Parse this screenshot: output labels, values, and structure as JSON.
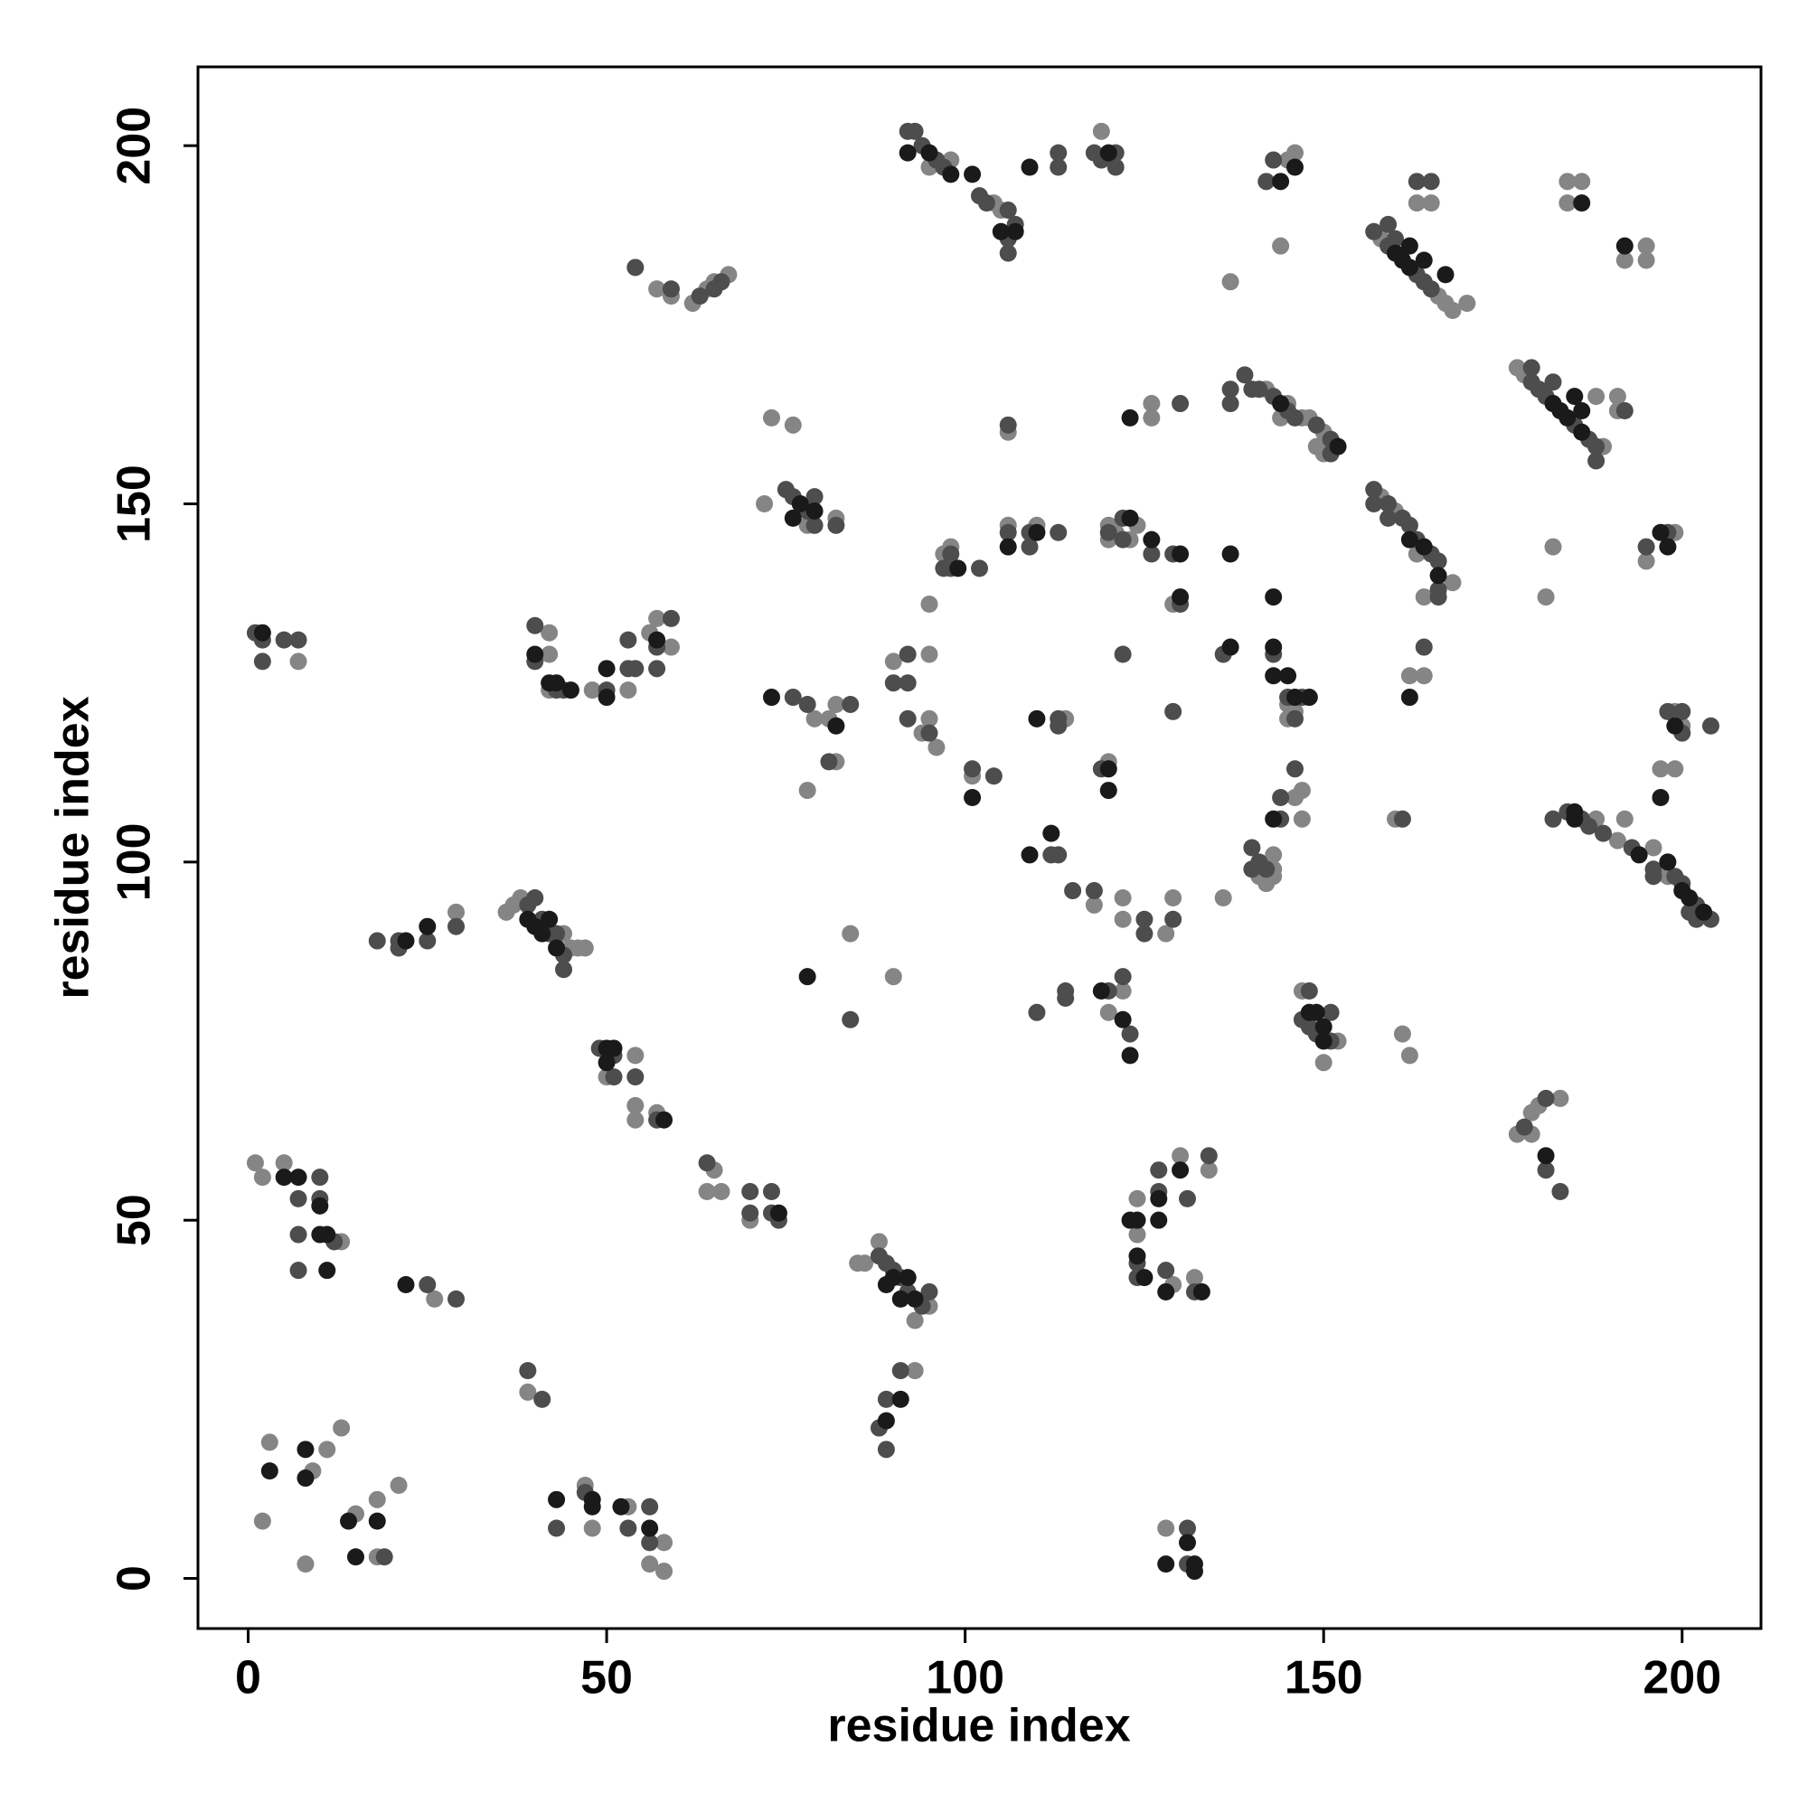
{
  "chart_data": {
    "type": "scatter",
    "x_label": "residue index",
    "y_label": "residue index",
    "xlim": [
      -7,
      211
    ],
    "ylim": [
      -7,
      211
    ],
    "xticks": [
      0,
      50,
      100,
      150,
      200
    ],
    "yticks": [
      0,
      50,
      100,
      150,
      200
    ],
    "grid": false,
    "series": [
      {
        "color": "#858585",
        "x": [
          3,
          2,
          9,
          11,
          13,
          8,
          15,
          18,
          18,
          21,
          39,
          47,
          48,
          53,
          58,
          56,
          58,
          128,
          93,
          1,
          2,
          5,
          13,
          26,
          65,
          64,
          66,
          70,
          85,
          86,
          88,
          95,
          93,
          124,
          124,
          129,
          130,
          132,
          134,
          54,
          54,
          54,
          57,
          50,
          177,
          179,
          180,
          183,
          179,
          161,
          162,
          147,
          152,
          150,
          122,
          120,
          90,
          84,
          29,
          36,
          37,
          38,
          44,
          45,
          46,
          47,
          118,
          122,
          122,
          128,
          129,
          136,
          141,
          143,
          143,
          142,
          143,
          147,
          146,
          147,
          188,
          191,
          192,
          196,
          198,
          197,
          199,
          199,
          200,
          160,
          78,
          82,
          81,
          82,
          79,
          90,
          94,
          95,
          96,
          95,
          95,
          101,
          114,
          120,
          145,
          145,
          146,
          162,
          164,
          97,
          98,
          106,
          110,
          120,
          121,
          123,
          124,
          120,
          129,
          72,
          78,
          82,
          73,
          76,
          106,
          126,
          126,
          142,
          144,
          147,
          148,
          150,
          149,
          150,
          145,
          158,
          160,
          164,
          168,
          163,
          182,
          181,
          195,
          199,
          188,
          191,
          191,
          177,
          178,
          189,
          158,
          166,
          167,
          168,
          170,
          163,
          165,
          184,
          186,
          184,
          195,
          192,
          195,
          145,
          146,
          144,
          137,
          119,
          98,
          104,
          105,
          95,
          57,
          59,
          62,
          64,
          65,
          67,
          7,
          42,
          42,
          42,
          48,
          53,
          56,
          57,
          59
        ],
        "values": [
          19,
          8,
          15,
          18,
          21,
          2,
          9,
          3,
          11,
          13,
          26,
          13,
          7,
          10,
          5,
          2,
          1,
          7,
          29,
          58,
          56,
          58,
          47,
          39,
          57,
          54,
          54,
          50,
          44,
          44,
          47,
          38,
          36,
          53,
          48,
          41,
          59,
          42,
          57,
          73,
          66,
          64,
          65,
          70,
          62,
          65,
          66,
          67,
          62,
          76,
          73,
          82,
          75,
          72,
          82,
          79,
          84,
          90,
          93,
          93,
          94,
          95,
          90,
          88,
          88,
          88,
          94,
          95,
          92,
          90,
          95,
          95,
          98,
          98,
          99,
          97,
          101,
          106,
          109,
          110,
          106,
          103,
          106,
          102,
          98,
          113,
          113,
          121,
          119,
          106,
          110,
          114,
          120,
          122,
          120,
          128,
          118,
          120,
          116,
          129,
          136,
          112,
          120,
          114,
          122,
          120,
          121,
          126,
          126,
          143,
          144,
          147,
          147,
          147,
          146,
          145,
          147,
          145,
          136,
          150,
          147,
          148,
          162,
          161,
          160,
          164,
          162,
          166,
          162,
          162,
          162,
          160,
          158,
          157,
          164,
          151,
          149,
          137,
          139,
          143,
          144,
          137,
          142,
          146,
          165,
          165,
          163,
          169,
          168,
          158,
          187,
          179,
          178,
          177,
          178,
          192,
          192,
          195,
          195,
          192,
          186,
          184,
          184,
          198,
          199,
          186,
          181,
          202,
          198,
          192,
          191,
          197,
          180,
          179,
          178,
          180,
          181,
          182,
          128,
          132,
          129,
          124,
          124,
          124,
          132,
          134,
          130
        ]
      },
      {
        "color": "#4d4d4d",
        "x": [
          19,
          39,
          41,
          43,
          47,
          53,
          56,
          56,
          131,
          131,
          88,
          89,
          89,
          91,
          7,
          7,
          7,
          10,
          10,
          12,
          25,
          29,
          64,
          70,
          73,
          70,
          73,
          74,
          88,
          89,
          90,
          91,
          92,
          94,
          95,
          124,
          124,
          127,
          127,
          128,
          131,
          132,
          134,
          49,
          51,
          51,
          54,
          57,
          178,
          181,
          181,
          183,
          148,
          148,
          151,
          149,
          151,
          147,
          120,
          122,
          123,
          110,
          114,
          114,
          84,
          18,
          21,
          21,
          25,
          29,
          39,
          40,
          41,
          42,
          43,
          44,
          44,
          115,
          118,
          125,
          125,
          129,
          112,
          113,
          140,
          140,
          142,
          141,
          144,
          144,
          146,
          182,
          184,
          186,
          187,
          189,
          193,
          196,
          199,
          200,
          202,
          204,
          202,
          201,
          196,
          198,
          200,
          200,
          204,
          161,
          81,
          84,
          78,
          76,
          90,
          92,
          92,
          92,
          95,
          101,
          104,
          113,
          113,
          119,
          122,
          129,
          136,
          143,
          145,
          146,
          147,
          164,
          97,
          98,
          102,
          98,
          106,
          109,
          109,
          113,
          120,
          122,
          122,
          126,
          129,
          130,
          75,
          76,
          78,
          79,
          79,
          82,
          106,
          130,
          137,
          137,
          139,
          140,
          141,
          143,
          145,
          146,
          149,
          151,
          151,
          157,
          159,
          161,
          162,
          163,
          165,
          166,
          166,
          166,
          159,
          157,
          195,
          198,
          192,
          179,
          180,
          181,
          185,
          187,
          188,
          188,
          179,
          182,
          157,
          159,
          163,
          164,
          165,
          159,
          160,
          163,
          165,
          142,
          143,
          118,
          121,
          121,
          119,
          113,
          113,
          92,
          93,
          94,
          96,
          97,
          102,
          103,
          106,
          106,
          106,
          107,
          54,
          59,
          63,
          66,
          65,
          1,
          2,
          5,
          7,
          2,
          40,
          40,
          43,
          44,
          50,
          53,
          54,
          53,
          57,
          59,
          57
        ],
        "values": [
          3,
          29,
          25,
          7,
          12,
          7,
          10,
          5,
          7,
          2,
          21,
          25,
          18,
          29,
          53,
          48,
          43,
          56,
          53,
          47,
          41,
          39,
          58,
          54,
          54,
          51,
          51,
          50,
          45,
          44,
          43,
          42,
          40,
          38,
          40,
          44,
          42,
          57,
          54,
          43,
          53,
          40,
          59,
          74,
          73,
          70,
          70,
          64,
          63,
          67,
          57,
          54,
          82,
          77,
          79,
          76,
          75,
          78,
          82,
          84,
          76,
          79,
          82,
          81,
          78,
          89,
          89,
          88,
          89,
          91,
          94,
          95,
          92,
          90,
          90,
          87,
          85,
          96,
          96,
          92,
          90,
          92,
          101,
          101,
          102,
          99,
          99,
          100,
          109,
          106,
          113,
          106,
          107,
          106,
          105,
          104,
          102,
          99,
          98,
          97,
          94,
          92,
          92,
          93,
          98,
          121,
          121,
          118,
          119,
          106,
          114,
          122,
          122,
          123,
          125,
          125,
          129,
          120,
          118,
          113,
          112,
          120,
          119,
          113,
          129,
          121,
          129,
          129,
          123,
          120,
          123,
          130,
          141,
          141,
          141,
          143,
          146,
          146,
          144,
          146,
          146,
          148,
          145,
          143,
          143,
          136,
          152,
          151,
          149,
          151,
          147,
          147,
          161,
          164,
          164,
          166,
          168,
          166,
          166,
          165,
          163,
          162,
          161,
          159,
          157,
          152,
          150,
          148,
          147,
          145,
          143,
          142,
          138,
          137,
          148,
          150,
          144,
          146,
          163,
          167,
          166,
          165,
          161,
          159,
          158,
          156,
          169,
          167,
          188,
          186,
          182,
          181,
          180,
          189,
          187,
          195,
          195,
          195,
          198,
          199,
          199,
          197,
          198,
          199,
          197,
          202,
          202,
          200,
          198,
          197,
          193,
          192,
          191,
          187,
          185,
          189,
          183,
          180,
          179,
          181,
          180,
          132,
          128,
          131,
          131,
          131,
          133,
          128,
          124,
          124,
          124,
          127,
          127,
          131,
          130,
          134,
          127
        ]
      },
      {
        "color": "#1a1a1a",
        "x": [
          3,
          8,
          8,
          14,
          18,
          15,
          43,
          48,
          48,
          52,
          56,
          131,
          132,
          132,
          128,
          89,
          91,
          5,
          7,
          10,
          10,
          11,
          11,
          22,
          74,
          90,
          92,
          93,
          89,
          91,
          124,
          123,
          124,
          125,
          127,
          127,
          128,
          130,
          133,
          50,
          51,
          50,
          58,
          181,
          148,
          149,
          150,
          150,
          119,
          122,
          123,
          78,
          22,
          25,
          39,
          40,
          41,
          42,
          43,
          109,
          112,
          143,
          185,
          185,
          194,
          200,
          201,
          203,
          198,
          197,
          199,
          82,
          73,
          101,
          110,
          120,
          120,
          137,
          143,
          143,
          145,
          146,
          148,
          143,
          162,
          99,
          106,
          110,
          123,
          126,
          130,
          130,
          137,
          76,
          79,
          77,
          123,
          144,
          152,
          162,
          164,
          166,
          197,
          198,
          186,
          182,
          183,
          184,
          186,
          185,
          186,
          160,
          161,
          162,
          167,
          164,
          162,
          144,
          146,
          120,
          109,
          92,
          95,
          98,
          101,
          105,
          107,
          192,
          2,
          40,
          42,
          43,
          45,
          50,
          50,
          57
        ],
        "values": [
          15,
          18,
          14,
          8,
          8,
          3,
          11,
          11,
          10,
          10,
          7,
          5,
          2,
          1,
          2,
          22,
          25,
          56,
          56,
          52,
          48,
          48,
          43,
          41,
          51,
          42,
          42,
          39,
          41,
          39,
          50,
          50,
          45,
          42,
          53,
          50,
          40,
          57,
          40,
          74,
          74,
          72,
          64,
          59,
          79,
          79,
          77,
          75,
          82,
          78,
          73,
          84,
          89,
          91,
          92,
          91,
          90,
          92,
          88,
          101,
          104,
          106,
          106,
          107,
          101,
          96,
          95,
          93,
          100,
          109,
          119,
          119,
          123,
          109,
          120,
          113,
          110,
          130,
          130,
          126,
          126,
          123,
          123,
          137,
          123,
          141,
          144,
          146,
          148,
          145,
          143,
          137,
          143,
          148,
          149,
          150,
          162,
          164,
          158,
          145,
          144,
          140,
          146,
          144,
          192,
          164,
          163,
          162,
          160,
          165,
          163,
          185,
          184,
          183,
          182,
          184,
          186,
          195,
          197,
          199,
          197,
          199,
          199,
          196,
          196,
          188,
          188,
          186,
          132,
          129,
          125,
          125,
          124,
          123,
          127,
          131
        ]
      }
    ]
  }
}
